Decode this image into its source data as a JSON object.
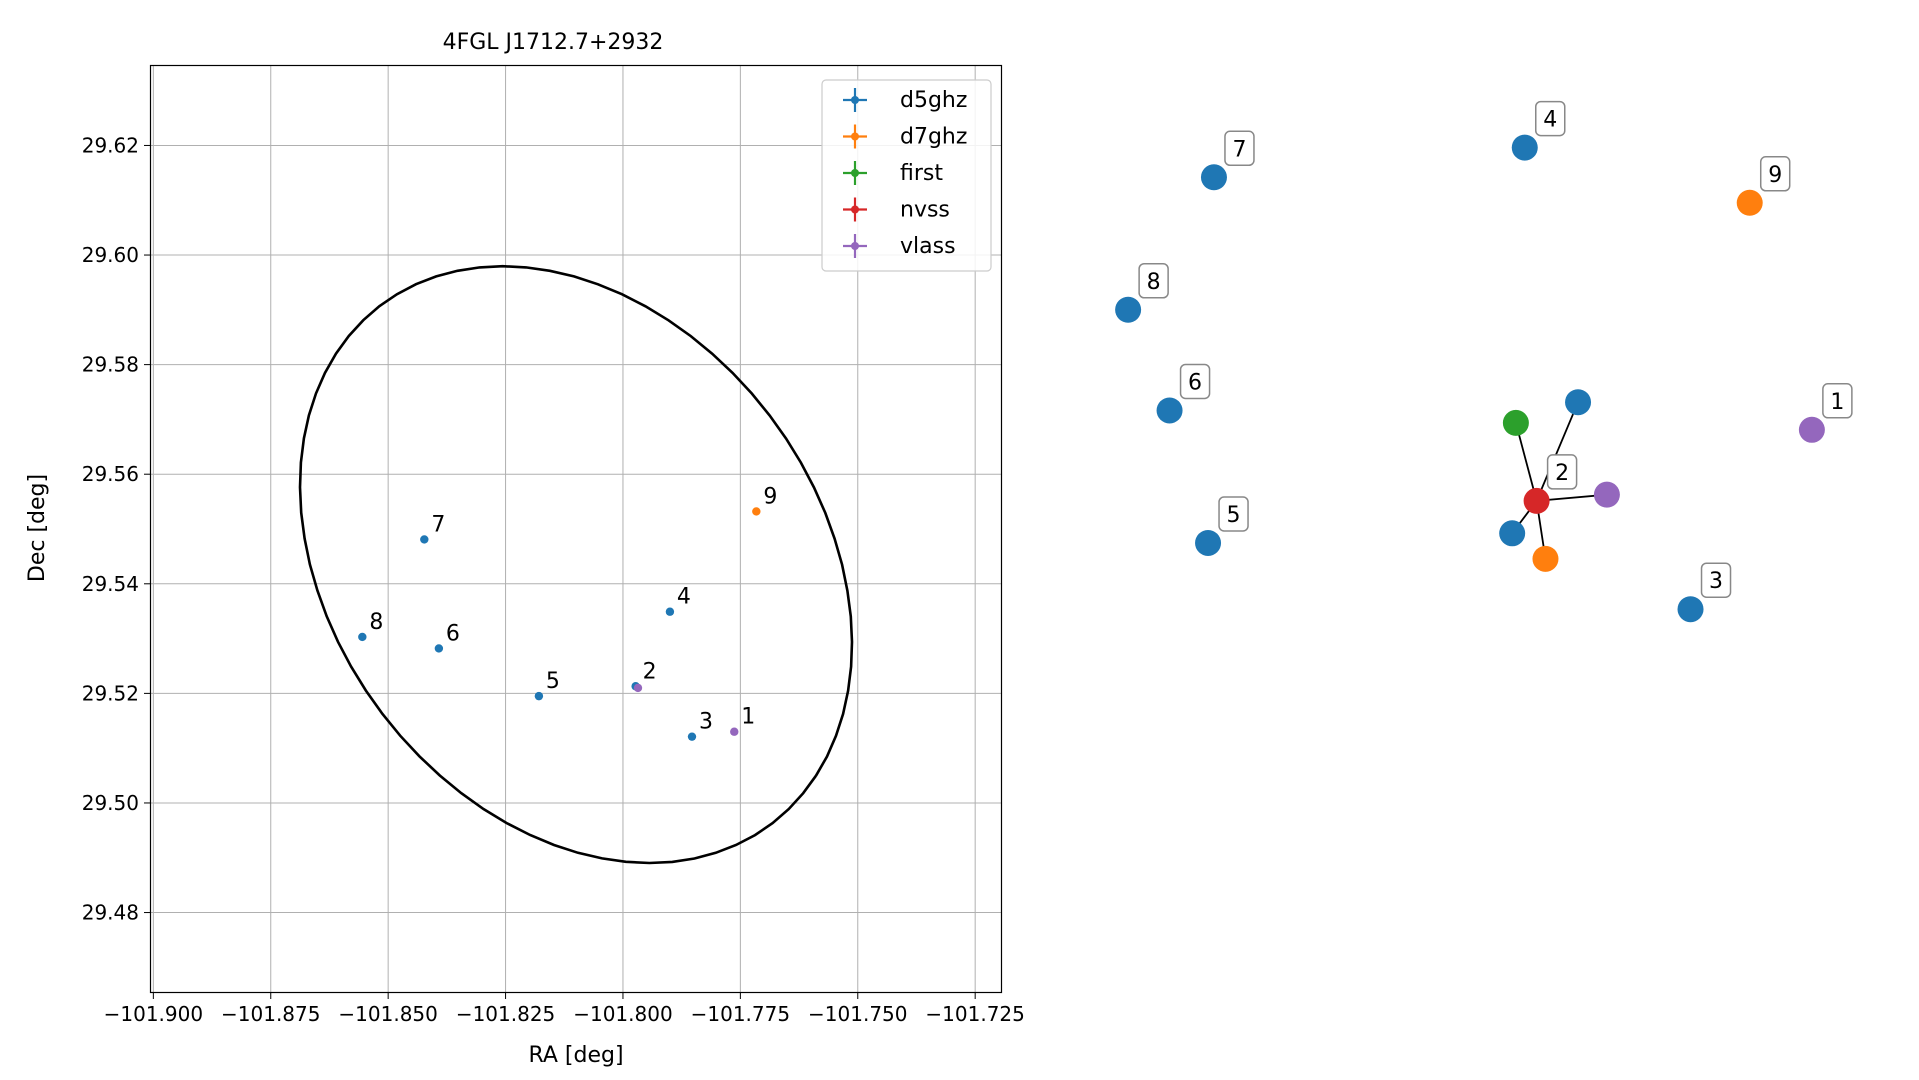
{
  "chart_data": [
    {
      "type": "scatter",
      "title": "4FGL J1712.7+2932",
      "xlabel": "RA [deg]",
      "ylabel": "Dec [deg]",
      "xlim": [
        -101.9005,
        -101.7195
      ],
      "ylim": [
        29.4655,
        29.6345
      ],
      "xticks": [
        -101.9,
        -101.875,
        -101.85,
        -101.825,
        -101.8,
        -101.775,
        -101.75,
        -101.725
      ],
      "xtick_labels": [
        "−101.900",
        "−101.875",
        "−101.850",
        "−101.825",
        "−101.800",
        "−101.775",
        "−101.750",
        "−101.725"
      ],
      "yticks": [
        29.48,
        29.5,
        29.52,
        29.54,
        29.56,
        29.58,
        29.6,
        29.62
      ],
      "ytick_labels": [
        "29.48",
        "29.50",
        "29.52",
        "29.54",
        "29.56",
        "29.58",
        "29.60",
        "29.62"
      ],
      "grid": true,
      "legend_position": "top-right",
      "series": [
        {
          "name": "d5ghz",
          "color": "#1f77b4"
        },
        {
          "name": "d7ghz",
          "color": "#ff7f0e"
        },
        {
          "name": "first",
          "color": "#2ca02c"
        },
        {
          "name": "nvss",
          "color": "#d62728"
        },
        {
          "name": "vlass",
          "color": "#9467bd"
        }
      ],
      "points": [
        {
          "label": "1",
          "ra": -101.7763,
          "dec": 29.513,
          "series": "vlass"
        },
        {
          "label": "2",
          "ra": -101.7973,
          "dec": 29.5213,
          "series": "d5ghz"
        },
        {
          "label": "2",
          "ra": -101.7968,
          "dec": 29.521,
          "series": "vlass"
        },
        {
          "label": "3",
          "ra": -101.7853,
          "dec": 29.5121,
          "series": "d5ghz"
        },
        {
          "label": "4",
          "ra": -101.79,
          "dec": 29.5349,
          "series": "d5ghz"
        },
        {
          "label": "5",
          "ra": -101.8179,
          "dec": 29.5195,
          "series": "d5ghz"
        },
        {
          "label": "6",
          "ra": -101.8392,
          "dec": 29.5282,
          "series": "d5ghz"
        },
        {
          "label": "7",
          "ra": -101.8423,
          "dec": 29.5481,
          "series": "d5ghz"
        },
        {
          "label": "8",
          "ra": -101.8555,
          "dec": 29.5303,
          "series": "d5ghz"
        },
        {
          "label": "9",
          "ra": -101.7716,
          "dec": 29.5532,
          "series": "d7ghz"
        }
      ],
      "ellipse": {
        "center_ra": -101.81,
        "center_dec": 29.5435,
        "semi_major_deg": 0.064,
        "semi_minor_deg": 0.0482,
        "angle_deg": -37
      }
    },
    {
      "type": "network",
      "nodes": [
        {
          "id": "1",
          "label": "1",
          "series": "vlass",
          "x": 0.962,
          "y": 0.551
        },
        {
          "id": "2",
          "label": "2",
          "series": "nvss",
          "x": 0.59,
          "y": 0.448
        },
        {
          "id": "3",
          "label": "3",
          "series": "d5ghz",
          "x": 0.798,
          "y": 0.291
        },
        {
          "id": "4",
          "label": "4",
          "series": "d5ghz",
          "x": 0.574,
          "y": 0.96
        },
        {
          "id": "5",
          "label": "5",
          "series": "d5ghz",
          "x": 0.146,
          "y": 0.387
        },
        {
          "id": "6",
          "label": "6",
          "series": "d5ghz",
          "x": 0.094,
          "y": 0.579
        },
        {
          "id": "7",
          "label": "7",
          "series": "d5ghz",
          "x": 0.154,
          "y": 0.917
        },
        {
          "id": "8",
          "label": "8",
          "series": "d5ghz",
          "x": 0.038,
          "y": 0.725
        },
        {
          "id": "9",
          "label": "9",
          "series": "d7ghz",
          "x": 0.878,
          "y": 0.88
        },
        {
          "id": "2a",
          "label": "",
          "series": "d5ghz",
          "x": 0.646,
          "y": 0.591
        },
        {
          "id": "2b",
          "label": "",
          "series": "first",
          "x": 0.562,
          "y": 0.561
        },
        {
          "id": "2c",
          "label": "",
          "series": "vlass",
          "x": 0.685,
          "y": 0.457
        },
        {
          "id": "2d",
          "label": "",
          "series": "d5ghz",
          "x": 0.557,
          "y": 0.401
        },
        {
          "id": "2e",
          "label": "",
          "series": "d7ghz",
          "x": 0.602,
          "y": 0.364
        }
      ],
      "edges": [
        [
          "2",
          "2a"
        ],
        [
          "2",
          "2b"
        ],
        [
          "2",
          "2c"
        ],
        [
          "2",
          "2d"
        ],
        [
          "2",
          "2e"
        ]
      ]
    }
  ]
}
